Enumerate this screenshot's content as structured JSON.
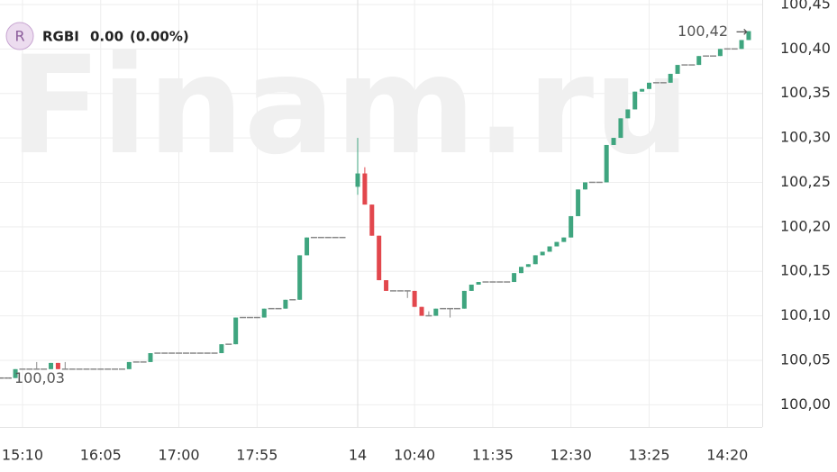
{
  "chart_data": {
    "type": "candlestick",
    "symbol_icon": "R",
    "symbol": "RGBI",
    "change": "0.00",
    "change_pct": "(0.00%)",
    "watermark": "Finam.ru",
    "up_color": "#3fa57f",
    "down_color": "#e2474d",
    "flat_color": "#8a8a8a",
    "categories": [
      null,
      null,
      null,
      "15:10",
      null,
      null,
      null,
      null,
      null,
      null,
      null,
      null,
      null,
      null,
      "16:05",
      null,
      null,
      null,
      null,
      null,
      null,
      null,
      null,
      null,
      null,
      "17:00",
      null,
      null,
      null,
      null,
      null,
      null,
      null,
      null,
      null,
      null,
      "17:55",
      null,
      null,
      null,
      null,
      null,
      null,
      null,
      null,
      null,
      null,
      null,
      null,
      "14",
      null,
      null,
      null,
      null,
      null,
      null,
      null,
      "10:40",
      null,
      null,
      null,
      null,
      null,
      null,
      null,
      null,
      null,
      null,
      "11:35",
      null,
      null,
      null,
      null,
      null,
      null,
      null,
      null,
      null,
      null,
      "12:30",
      null,
      null,
      null,
      null,
      null,
      null,
      null,
      null,
      null,
      null,
      "13:25",
      null,
      null,
      null,
      null,
      null,
      null,
      null,
      null,
      null,
      null,
      "14:20",
      null,
      null,
      null
    ],
    "open": [
      100.03,
      100.03,
      100.03,
      100.04,
      100.04,
      100.04,
      100.04,
      100.04,
      100.047,
      100.04,
      100.04,
      100.04,
      100.04,
      100.04,
      100.04,
      100.04,
      100.04,
      100.04,
      100.04,
      100.048,
      100.048,
      100.048,
      100.058,
      100.058,
      100.058,
      100.058,
      100.058,
      100.058,
      100.058,
      100.058,
      100.058,
      100.058,
      100.068,
      100.068,
      100.098,
      100.098,
      100.098,
      100.098,
      100.108,
      100.108,
      100.108,
      100.118,
      100.118,
      100.168,
      100.188,
      100.188,
      100.188,
      100.188,
      100.188,
      100.245,
      100.26,
      100.225,
      100.19,
      100.14,
      100.128,
      100.128,
      100.128,
      100.128,
      100.11,
      100.1,
      100.1,
      100.108,
      100.108,
      100.108,
      100.108,
      100.128,
      100.135,
      100.138,
      100.138,
      100.138,
      100.138,
      100.138,
      100.148,
      100.155,
      100.158,
      100.168,
      100.172,
      100.178,
      100.183,
      100.188,
      100.212,
      100.242,
      100.25,
      100.25,
      100.25,
      100.292,
      100.3,
      100.322,
      100.332,
      100.352,
      100.355,
      100.362,
      100.362,
      100.362,
      100.372,
      100.382,
      100.382,
      100.382,
      100.392,
      100.392,
      100.392,
      100.4,
      100.4,
      100.4,
      100.41
    ],
    "high": [
      100.03,
      100.03,
      100.04,
      100.04,
      100.04,
      100.048,
      100.04,
      100.047,
      100.047,
      100.048,
      100.04,
      100.04,
      100.04,
      100.04,
      100.04,
      100.04,
      100.04,
      100.04,
      100.048,
      100.048,
      100.048,
      100.058,
      100.058,
      100.058,
      100.058,
      100.058,
      100.058,
      100.058,
      100.058,
      100.058,
      100.058,
      100.068,
      100.068,
      100.098,
      100.098,
      100.098,
      100.098,
      100.108,
      100.108,
      100.108,
      100.118,
      100.118,
      100.168,
      100.188,
      100.188,
      100.188,
      100.188,
      100.188,
      100.188,
      100.3,
      100.267,
      100.225,
      100.19,
      100.14,
      100.128,
      100.128,
      100.128,
      100.128,
      100.11,
      100.105,
      100.108,
      100.108,
      100.108,
      100.108,
      100.128,
      100.135,
      100.138,
      100.138,
      100.138,
      100.138,
      100.138,
      100.148,
      100.155,
      100.158,
      100.168,
      100.172,
      100.178,
      100.183,
      100.188,
      100.212,
      100.242,
      100.25,
      100.25,
      100.25,
      100.292,
      100.3,
      100.322,
      100.332,
      100.352,
      100.355,
      100.362,
      100.362,
      100.362,
      100.372,
      100.382,
      100.382,
      100.382,
      100.392,
      100.392,
      100.392,
      100.4,
      100.4,
      100.4,
      100.41,
      100.42
    ],
    "low": [
      100.03,
      100.03,
      100.03,
      100.04,
      100.04,
      100.04,
      100.04,
      100.04,
      100.04,
      100.04,
      100.04,
      100.04,
      100.04,
      100.04,
      100.04,
      100.04,
      100.04,
      100.04,
      100.04,
      100.048,
      100.048,
      100.048,
      100.058,
      100.058,
      100.058,
      100.058,
      100.058,
      100.058,
      100.058,
      100.058,
      100.058,
      100.058,
      100.068,
      100.068,
      100.098,
      100.098,
      100.098,
      100.098,
      100.108,
      100.108,
      100.108,
      100.118,
      100.118,
      100.168,
      100.188,
      100.188,
      100.188,
      100.188,
      100.188,
      100.236,
      100.225,
      100.19,
      100.14,
      100.128,
      100.128,
      100.128,
      100.12,
      100.11,
      100.1,
      100.1,
      100.1,
      100.108,
      100.098,
      100.108,
      100.108,
      100.128,
      100.135,
      100.138,
      100.138,
      100.138,
      100.138,
      100.138,
      100.148,
      100.155,
      100.158,
      100.168,
      100.172,
      100.178,
      100.183,
      100.188,
      100.212,
      100.242,
      100.25,
      100.25,
      100.25,
      100.292,
      100.3,
      100.322,
      100.332,
      100.352,
      100.355,
      100.362,
      100.362,
      100.362,
      100.372,
      100.382,
      100.382,
      100.382,
      100.392,
      100.392,
      100.392,
      100.4,
      100.4,
      100.4,
      100.41
    ],
    "close": [
      100.03,
      100.03,
      100.04,
      100.04,
      100.04,
      100.04,
      100.04,
      100.047,
      100.04,
      100.04,
      100.04,
      100.04,
      100.04,
      100.04,
      100.04,
      100.04,
      100.04,
      100.04,
      100.048,
      100.048,
      100.048,
      100.058,
      100.058,
      100.058,
      100.058,
      100.058,
      100.058,
      100.058,
      100.058,
      100.058,
      100.058,
      100.068,
      100.068,
      100.098,
      100.098,
      100.098,
      100.098,
      100.108,
      100.108,
      100.108,
      100.118,
      100.118,
      100.168,
      100.188,
      100.188,
      100.188,
      100.188,
      100.188,
      100.188,
      100.26,
      100.225,
      100.19,
      100.14,
      100.128,
      100.128,
      100.128,
      100.128,
      100.11,
      100.1,
      100.1,
      100.108,
      100.108,
      100.108,
      100.108,
      100.128,
      100.135,
      100.138,
      100.138,
      100.138,
      100.138,
      100.138,
      100.148,
      100.155,
      100.158,
      100.168,
      100.172,
      100.178,
      100.183,
      100.188,
      100.212,
      100.242,
      100.25,
      100.25,
      100.25,
      100.292,
      100.3,
      100.322,
      100.332,
      100.352,
      100.355,
      100.362,
      100.362,
      100.362,
      100.372,
      100.382,
      100.382,
      100.382,
      100.392,
      100.392,
      100.392,
      100.4,
      100.4,
      100.4,
      100.41,
      100.42
    ],
    "ylim": [
      99.975,
      100.455
    ],
    "yticks": [
      {
        "value": 100.0,
        "label": "100,00"
      },
      {
        "value": 100.05,
        "label": "100,05"
      },
      {
        "value": 100.1,
        "label": "100,10"
      },
      {
        "value": 100.15,
        "label": "100,15"
      },
      {
        "value": 100.2,
        "label": "100,20"
      },
      {
        "value": 100.25,
        "label": "100,25"
      },
      {
        "value": 100.3,
        "label": "100,30"
      },
      {
        "value": 100.35,
        "label": "100,35"
      },
      {
        "value": 100.4,
        "label": "100,40"
      },
      {
        "value": 100.45,
        "label": "100,45"
      }
    ],
    "price_labels": [
      {
        "value": 100.42,
        "label": "100,42"
      },
      {
        "value": 100.03,
        "label": "100,03"
      }
    ],
    "grid": true
  }
}
